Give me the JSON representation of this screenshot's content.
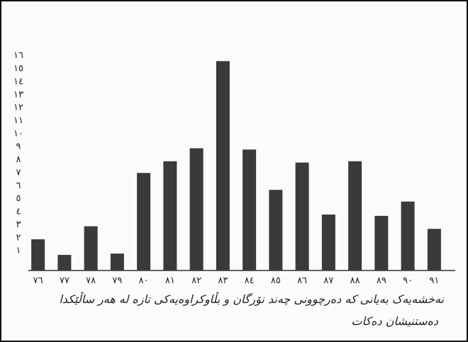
{
  "chart_data": {
    "type": "bar",
    "categories": [
      "٧٦",
      "٧٧",
      "٧٨",
      "٧٩",
      "٨٠",
      "٨١",
      "٨٢",
      "٨٣",
      "٨٤",
      "٨٥",
      "٨٦",
      "٨٧",
      "٨٨",
      "٨٩",
      "٩٠",
      "٩١"
    ],
    "values": [
      2.4,
      1.2,
      3.4,
      1.3,
      7.5,
      8.4,
      9.4,
      16.1,
      9.3,
      6.2,
      8.3,
      4.3,
      8.4,
      4.2,
      5.3,
      3.2
    ],
    "yticks": [
      1,
      2,
      3,
      4,
      5,
      6,
      7,
      8,
      9,
      10,
      11,
      12,
      13,
      14,
      15,
      16
    ],
    "ytick_labels": [
      "١",
      "٢",
      "٣",
      "٤",
      "٥",
      "٦",
      "٧",
      "٨",
      "٩",
      "١٠",
      "١١",
      "١٢",
      "١٣",
      "١٤",
      "١٥",
      "١٦"
    ],
    "ylim": [
      0,
      16.5
    ],
    "bar_color": "#3a3a3a"
  },
  "caption": {
    "line1": "نەخشەیەک بەیانی کە دەرچوونی چەند نۆرگان و بڵاوکراوەیەکی تازە لە هەر ساڵێکدا",
    "line2": "دەستنیشان دەکات"
  }
}
